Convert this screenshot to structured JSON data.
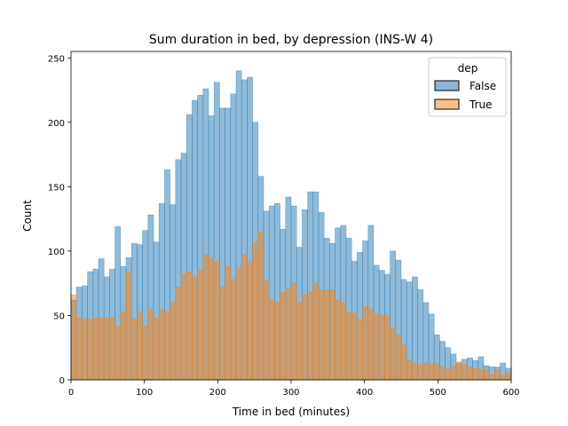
{
  "chart_data": {
    "type": "bar",
    "title": "Sum duration in bed, by depression (INS-W 4)",
    "xlabel": "Time in bed (minutes)",
    "ylabel": "Count",
    "xlim": [
      0,
      600
    ],
    "ylim": [
      0,
      255
    ],
    "xticks": [
      "0",
      "100",
      "200",
      "300",
      "400",
      "500",
      "600"
    ],
    "yticks": [
      "0",
      "50",
      "100",
      "150",
      "200",
      "250"
    ],
    "bin_width": 7.5,
    "grid": false,
    "legend": {
      "title": "dep",
      "position": "top-right"
    },
    "series": [
      {
        "name": "False",
        "color": "#1f77b4",
        "values": [
          62,
          72,
          73,
          84,
          86,
          94,
          80,
          86,
          119,
          88,
          95,
          106,
          105,
          116,
          128,
          107,
          137,
          163,
          136,
          171,
          176,
          206,
          217,
          221,
          226,
          205,
          231,
          211,
          211,
          222,
          240,
          233,
          235,
          200,
          158,
          131,
          135,
          137,
          117,
          142,
          135,
          103,
          132,
          146,
          146,
          130,
          110,
          106,
          118,
          120,
          110,
          92,
          99,
          108,
          120,
          89,
          85,
          82,
          100,
          93,
          78,
          76,
          80,
          70,
          60,
          51,
          35,
          30,
          25,
          20,
          13,
          16,
          17,
          15,
          18,
          11,
          10,
          10,
          13,
          9
        ]
      },
      {
        "name": "True",
        "color": "#ff7f0e",
        "values": [
          66,
          48,
          47,
          47,
          48,
          48,
          48,
          48,
          42,
          53,
          83,
          47,
          53,
          42,
          55,
          48,
          55,
          53,
          60,
          72,
          82,
          84,
          80,
          85,
          97,
          95,
          92,
          72,
          88,
          78,
          87,
          97,
          92,
          107,
          115,
          77,
          62,
          60,
          68,
          71,
          75,
          60,
          66,
          68,
          75,
          70,
          70,
          70,
          62,
          60,
          52,
          52,
          47,
          57,
          55,
          51,
          50,
          50,
          40,
          35,
          27,
          15,
          13,
          12,
          13,
          12,
          13,
          10,
          8,
          11,
          14,
          12,
          10,
          9,
          8,
          8,
          4,
          8,
          4,
          6
        ]
      }
    ]
  }
}
